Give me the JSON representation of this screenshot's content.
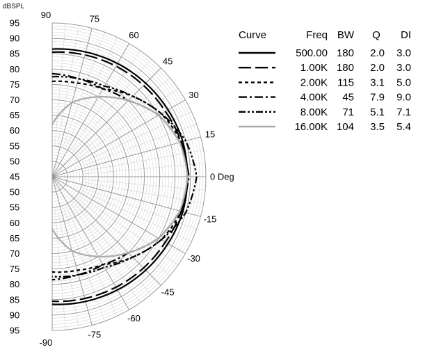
{
  "chart_data": {
    "type": "line",
    "subtype": "polar-half",
    "unit_label": "dBSPL",
    "radial_ticks": [
      "95",
      "90",
      "85",
      "80",
      "75",
      "70",
      "65",
      "60",
      "55",
      "50",
      "45",
      "50",
      "55",
      "60",
      "65",
      "70",
      "75",
      "80",
      "85",
      "90",
      "95"
    ],
    "angle_ticks": [
      90,
      75,
      60,
      45,
      30,
      15,
      0,
      -15,
      -30,
      -45,
      -60,
      -75,
      -90
    ],
    "zero_label": "0 Deg",
    "rlim": [
      45,
      95
    ],
    "grid": true,
    "legend": {
      "placement": "right",
      "headers": [
        "Curve",
        "Freq",
        "BW",
        "Q",
        "DI"
      ],
      "rows": [
        {
          "freq": "500.00",
          "bw": "180",
          "q": "2.0",
          "di": "3.0"
        },
        {
          "freq": "1.00K",
          "bw": "180",
          "q": "2.0",
          "di": "3.0"
        },
        {
          "freq": "2.00K",
          "bw": "115",
          "q": "3.1",
          "di": "5.0"
        },
        {
          "freq": "4.00K",
          "bw": "45",
          "q": "7.9",
          "di": "9.0"
        },
        {
          "freq": "8.00K",
          "bw": "71",
          "q": "5.1",
          "di": "7.1"
        },
        {
          "freq": "16.00K",
          "bw": "104",
          "q": "3.5",
          "di": "5.4"
        }
      ]
    },
    "series": [
      {
        "style": "solid",
        "color": "#000000",
        "angles": [
          90,
          75,
          60,
          45,
          30,
          15,
          0,
          -15,
          -30,
          -45,
          -60,
          -75,
          -90
        ],
        "values": [
          86.5,
          87.0,
          87.5,
          88.0,
          88.5,
          89.0,
          89.0,
          89.0,
          88.5,
          88.0,
          87.5,
          87.0,
          86.5
        ]
      },
      {
        "style": "longdash",
        "color": "#000000",
        "angles": [
          90,
          75,
          60,
          45,
          30,
          15,
          0,
          -15,
          -30,
          -45,
          -60,
          -75,
          -90
        ],
        "values": [
          85.5,
          86.0,
          86.5,
          87.0,
          87.5,
          88.5,
          89.0,
          88.5,
          87.5,
          87.0,
          86.5,
          86.0,
          85.5
        ]
      },
      {
        "style": "shortdash",
        "color": "#000000",
        "angles": [
          90,
          75,
          60,
          45,
          30,
          15,
          0,
          -15,
          -30,
          -45,
          -60,
          -75,
          -90
        ],
        "values": [
          76.0,
          76.5,
          78.0,
          82.0,
          86.0,
          88.5,
          89.0,
          88.5,
          86.0,
          82.0,
          78.0,
          76.5,
          76.0
        ]
      },
      {
        "style": "dashdot",
        "color": "#000000",
        "angles": [
          90,
          75,
          60,
          45,
          30,
          15,
          0,
          -15,
          -30,
          -45,
          -60,
          -75,
          -90
        ],
        "values": [
          78.5,
          78.0,
          78.0,
          80.0,
          85.0,
          88.0,
          89.5,
          88.0,
          85.0,
          80.0,
          78.0,
          78.0,
          78.5
        ]
      },
      {
        "style": "dashdotdot",
        "color": "#000000",
        "angles": [
          90,
          75,
          60,
          45,
          30,
          15,
          0,
          -15,
          -30,
          -45,
          -60,
          -75,
          -90
        ],
        "values": [
          77.5,
          78.0,
          79.0,
          82.0,
          86.0,
          90.0,
          92.0,
          90.0,
          86.0,
          82.0,
          79.0,
          78.0,
          77.5
        ]
      },
      {
        "style": "solid",
        "color": "#aaaaaa",
        "angles": [
          90,
          75,
          60,
          45,
          30,
          15,
          0,
          -15,
          -30,
          -45,
          -60,
          -75,
          -90
        ],
        "values": [
          62.0,
          70.0,
          75.0,
          80.0,
          85.0,
          88.0,
          89.0,
          88.0,
          85.0,
          80.0,
          75.0,
          70.0,
          62.0
        ]
      }
    ]
  }
}
